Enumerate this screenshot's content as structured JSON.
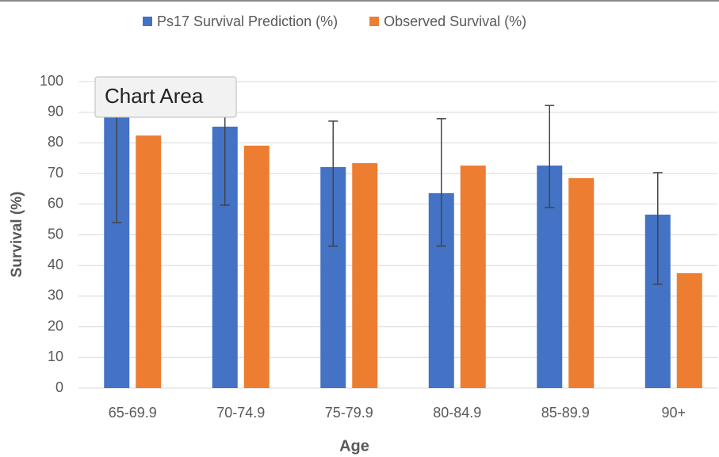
{
  "chart_data": {
    "type": "bar",
    "xlabel": "Age",
    "ylabel": "Survival (%)",
    "categories": [
      "65-69.9",
      "70-74.9",
      "75-79.9",
      "80-84.9",
      "85-89.9",
      "90+"
    ],
    "series": [
      {
        "name": "Ps17 Survival Prediction (%)",
        "color": "#4472c4",
        "values": [
          91,
          85.3,
          72.1,
          63.6,
          72.6,
          56.6
        ],
        "error_low": [
          54,
          59.7,
          46.3,
          46.3,
          58.9,
          33.9
        ],
        "error_high": [
          99,
          95,
          87.1,
          87.9,
          92.2,
          70.3
        ]
      },
      {
        "name": "Observed Survival (%)",
        "color": "#ed7d31",
        "values": [
          82.4,
          79.1,
          73.4,
          72.6,
          68.5,
          37.5
        ]
      }
    ],
    "ylim": [
      0,
      100
    ],
    "yticks": [
      0,
      10,
      20,
      30,
      40,
      50,
      60,
      70,
      80,
      90,
      100
    ],
    "grid": true,
    "legend": "top"
  },
  "tooltip": "Chart Area"
}
